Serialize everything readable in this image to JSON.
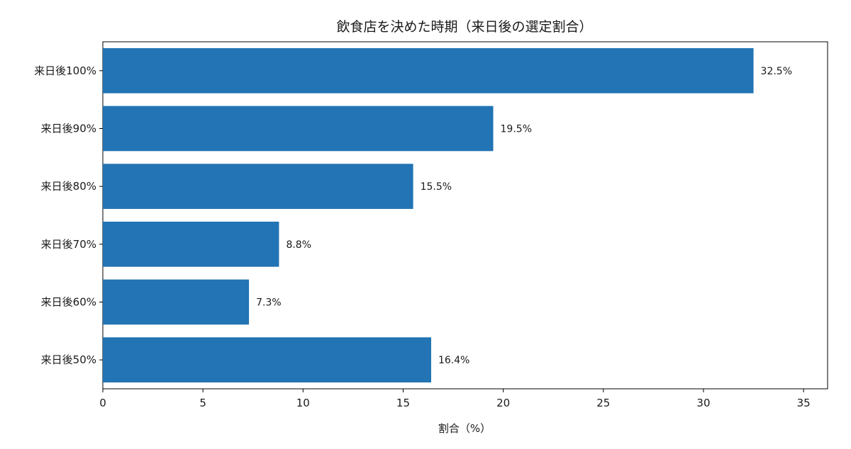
{
  "chart_data": {
    "type": "bar",
    "orientation": "horizontal",
    "title": "飲食店を決めた時期（来日後の選定割合）",
    "xlabel": "割合（%）",
    "ylabel": "",
    "categories": [
      "来日後100%",
      "来日後90%",
      "来日後80%",
      "来日後70%",
      "来日後60%",
      "来日後50%"
    ],
    "values": [
      32.5,
      19.5,
      15.5,
      8.8,
      7.3,
      16.4
    ],
    "data_labels": [
      "32.5%",
      "19.5%",
      "15.5%",
      "8.8%",
      "7.3%",
      "16.4%"
    ],
    "xlim": [
      0,
      36.2
    ],
    "xticks": [
      0,
      5,
      10,
      15,
      20,
      25,
      30,
      35
    ],
    "grid": false,
    "legend": "none",
    "bar_color": "#2274b4"
  }
}
